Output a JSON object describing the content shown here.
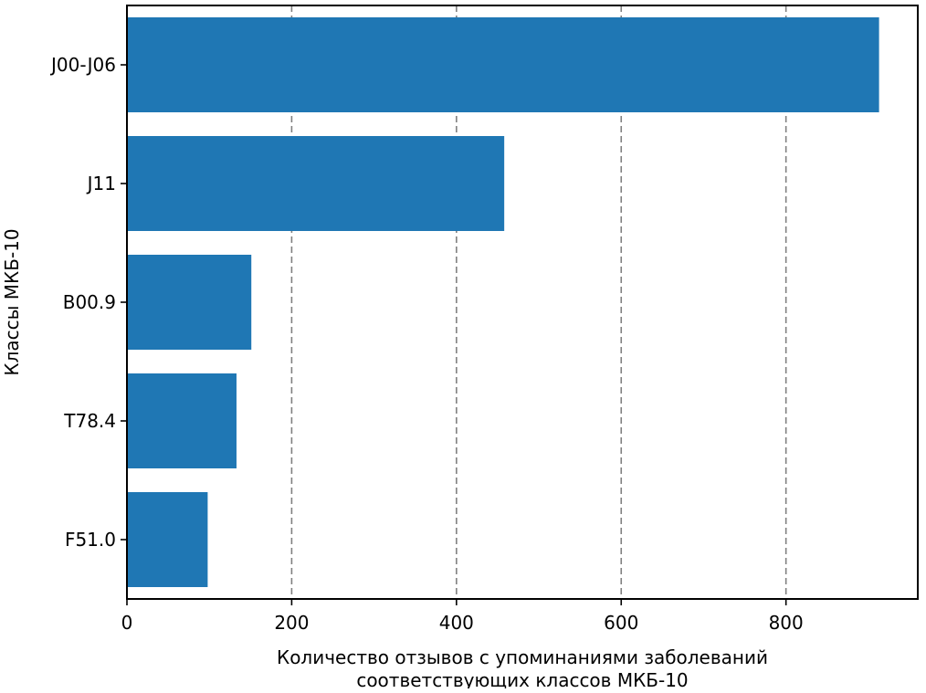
{
  "chart_data": {
    "type": "bar",
    "orientation": "horizontal",
    "categories": [
      "J00-J06",
      "J11",
      "B00.9",
      "T78.4",
      "F51.0"
    ],
    "values": [
      913,
      458,
      151,
      133,
      98
    ],
    "xlabel_lines": [
      "Количество отзывов с упоминаниями заболеваний",
      "соответствующих классов МКБ-10"
    ],
    "ylabel": "Классы МКБ-10",
    "xlim": [
      0,
      960
    ],
    "xticks": [
      0,
      200,
      400,
      600,
      800
    ],
    "grid": "x-major-dashed",
    "legend": "none",
    "bar_color": "#1f77b4"
  }
}
